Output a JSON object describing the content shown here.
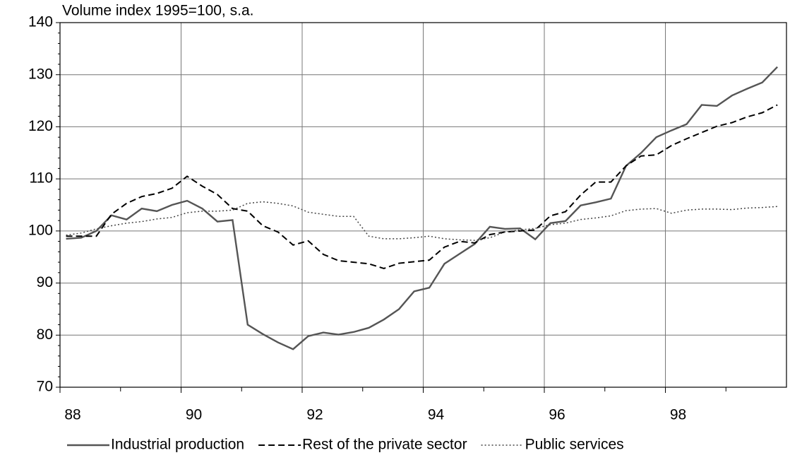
{
  "chart_data": {
    "type": "line",
    "y_label": "Volume index 1995=100, s.a.",
    "x": [
      88.1,
      88.35,
      88.6,
      88.85,
      89.1,
      89.35,
      89.6,
      89.85,
      90.1,
      90.35,
      90.6,
      90.85,
      91.1,
      91.35,
      91.6,
      91.85,
      92.1,
      92.35,
      92.6,
      92.85,
      93.1,
      93.35,
      93.6,
      93.85,
      94.1,
      94.35,
      94.6,
      94.85,
      95.1,
      95.35,
      95.6,
      95.85,
      96.1,
      96.35,
      96.6,
      96.85,
      97.1,
      97.35,
      97.6,
      97.85,
      98.1,
      98.35,
      98.6,
      98.85,
      99.1,
      99.35,
      99.6,
      99.85
    ],
    "series": [
      {
        "name": "Industrial production",
        "color": "#555555",
        "dash": "solid",
        "values": [
          98.5,
          98.7,
          100,
          103,
          102.2,
          104.3,
          103.8,
          105,
          105.8,
          104.3,
          101.8,
          102.1,
          82,
          80.2,
          78.6,
          77.3,
          79.8,
          80.5,
          80.1,
          80.6,
          81.4,
          83,
          85,
          88.4,
          89.1,
          93.7,
          95.6,
          97.5,
          100.8,
          100.4,
          100.5,
          98.4,
          101.5,
          101.9,
          104.9,
          105.5,
          106.2,
          112.5,
          115,
          118,
          119.3,
          120.5,
          124.2,
          124,
          126,
          127.3,
          128.5,
          131.5
        ]
      },
      {
        "name": "Rest of the private sector",
        "color": "#000000",
        "dash": "dashed",
        "values": [
          99,
          99,
          99,
          103.2,
          105.3,
          106.6,
          107.2,
          108.2,
          110.5,
          108.6,
          107,
          104.3,
          103.8,
          101,
          99.8,
          97.3,
          98.1,
          95.5,
          94.3,
          94,
          93.7,
          92.8,
          93.8,
          94.1,
          94.4,
          96.9,
          98,
          97.7,
          99.3,
          99.8,
          100,
          100.2,
          102.9,
          103.7,
          106.9,
          109.4,
          109.4,
          112.5,
          114.4,
          114.6,
          116.4,
          117.7,
          118.9,
          120.1,
          120.8,
          121.9,
          122.7,
          124.2
        ]
      },
      {
        "name": "Public services",
        "color": "#444444",
        "dash": "dotted",
        "values": [
          99.2,
          99.6,
          100.4,
          101,
          101.5,
          101.8,
          102.3,
          102.6,
          103.5,
          103.8,
          103.8,
          104,
          105.3,
          105.6,
          105.3,
          104.8,
          103.6,
          103.2,
          102.8,
          102.8,
          99,
          98.5,
          98.5,
          98.7,
          99,
          98.5,
          98.3,
          98.2,
          98.7,
          99.8,
          100.2,
          100.5,
          101.2,
          101.5,
          102.2,
          102.5,
          102.9,
          103.9,
          104.2,
          104.3,
          103.4,
          104,
          104.2,
          104.2,
          104.1,
          104.4,
          104.5,
          104.7
        ]
      }
    ],
    "xlim": [
      88,
      100
    ],
    "xticks": [
      88,
      90,
      92,
      94,
      96,
      98
    ],
    "ylim": [
      70,
      140
    ],
    "yticks": [
      70,
      80,
      90,
      100,
      110,
      120,
      130,
      140
    ],
    "grid": true,
    "legend": "bottom"
  }
}
